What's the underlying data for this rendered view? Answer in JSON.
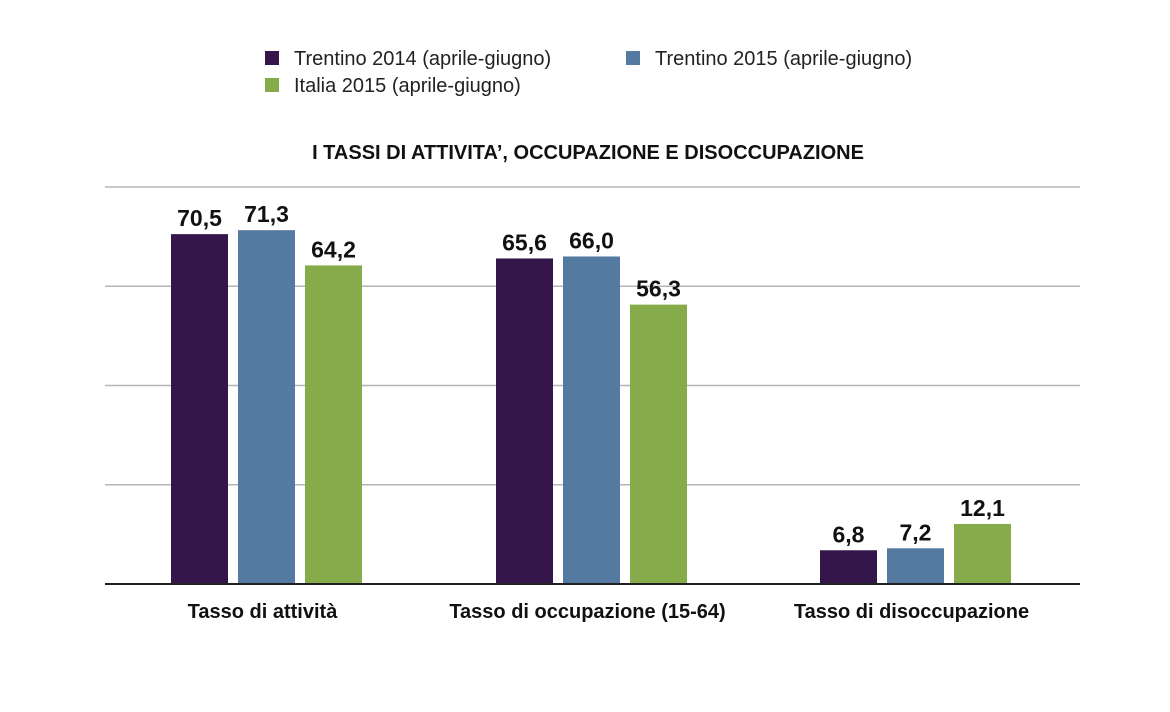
{
  "chart_data": {
    "type": "bar",
    "title": "I TASSI DI ATTIVITA’, OCCUPAZIONE E DISOCCUPAZIONE",
    "categories": [
      "Tasso di attività",
      "Tasso di occupazione (15-64)",
      "Tasso di disoccupazione"
    ],
    "series": [
      {
        "name": "Trentino 2014 (aprile-giugno)",
        "color": "#35164a",
        "values": [
          70.5,
          65.6,
          6.8
        ],
        "labels": [
          "70,5",
          "65,6",
          "6,8"
        ]
      },
      {
        "name": "Trentino 2015 (aprile-giugno)",
        "color": "#547aa2",
        "values": [
          71.3,
          66.0,
          7.2
        ],
        "labels": [
          "71,3",
          "66,0",
          "7,2"
        ]
      },
      {
        "name": "Italia 2015 (aprile-giugno)",
        "color": "#86ab4a",
        "values": [
          64.2,
          56.3,
          12.1
        ],
        "labels": [
          "64,2",
          "56,3",
          "12,1"
        ]
      }
    ],
    "ylim": [
      0,
      80
    ],
    "grid": true,
    "legend_position": "top"
  }
}
